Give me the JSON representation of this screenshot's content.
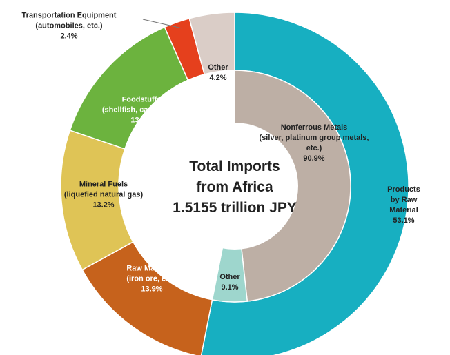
{
  "chart_data": {
    "type": "nested-donut",
    "title": "Total Imports\nfrom Africa\n1.5155 trillion JPY",
    "outer": {
      "categories": [
        "Products\nby Raw Material",
        "Raw Materials\n(iron ore, etc.)",
        "Mineral Fuels\n(liquefied natural gas)",
        "Foodstuffs\n(shellfish, cacao, etc.)",
        "Transportation Equipment\n(automobiles, etc.)",
        "Other"
      ],
      "values": [
        53.1,
        13.9,
        13.2,
        13.2,
        2.4,
        4.2
      ],
      "value_labels": [
        "53.1%",
        "13.9%",
        "13.2%",
        "13.2%",
        "2.4%",
        "4.2%"
      ],
      "colors": [
        "#17afc1",
        "#c6621c",
        "#dfc456",
        "#6cb33e",
        "#e5401d",
        "#dacdc7"
      ]
    },
    "inner": {
      "categories": [
        "Nonferrous Metals\n(silver, platinum group metals,\netc.)",
        "Other"
      ],
      "values": [
        90.9,
        9.1
      ],
      "value_labels": [
        "90.9%",
        "9.1%"
      ],
      "colors": [
        "#bdafa5",
        "#9ed6cd"
      ]
    }
  }
}
